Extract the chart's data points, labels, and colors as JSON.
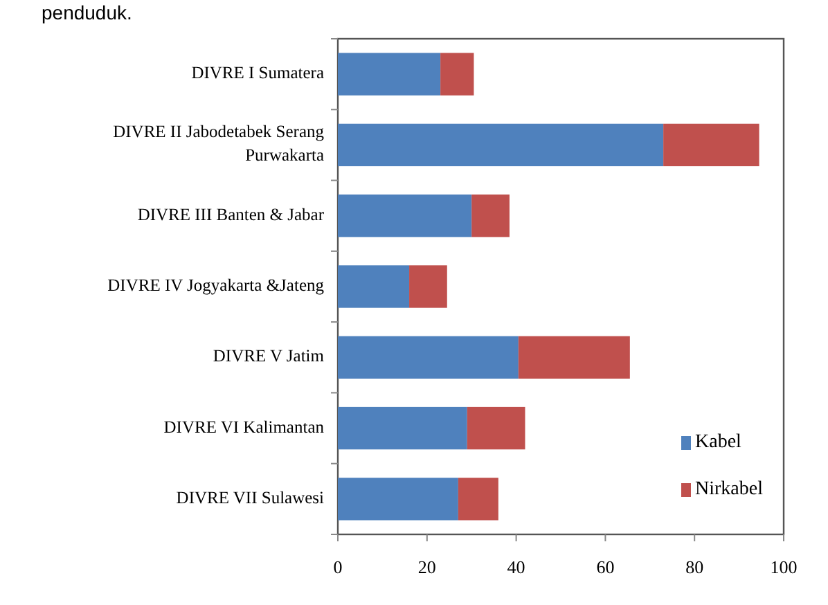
{
  "chart_data": {
    "type": "bar",
    "orientation": "horizontal",
    "stacked": true,
    "categories": [
      "DIVRE I Sumatera",
      "DIVRE II Jabodetabek Serang Purwakarta",
      "DIVRE III Banten & Jabar",
      "DIVRE IV Jogyakarta &Jateng",
      "DIVRE V Jatim",
      "DIVRE VI Kalimantan",
      "DIVRE VII Sulawesi"
    ],
    "series": [
      {
        "name": "Kabel",
        "color": "#4f81bd",
        "values": [
          23,
          73,
          30,
          16,
          40.5,
          29,
          27
        ]
      },
      {
        "name": "Nirkabel",
        "color": "#c0504d",
        "values": [
          7.5,
          21.5,
          8.5,
          8.5,
          25,
          13,
          9
        ]
      }
    ],
    "xlim": [
      0,
      100
    ],
    "xticks": [
      0,
      20,
      40,
      60,
      80,
      100
    ],
    "legend": "bottom right",
    "grid": false,
    "annotations": [
      "penduduk."
    ]
  }
}
